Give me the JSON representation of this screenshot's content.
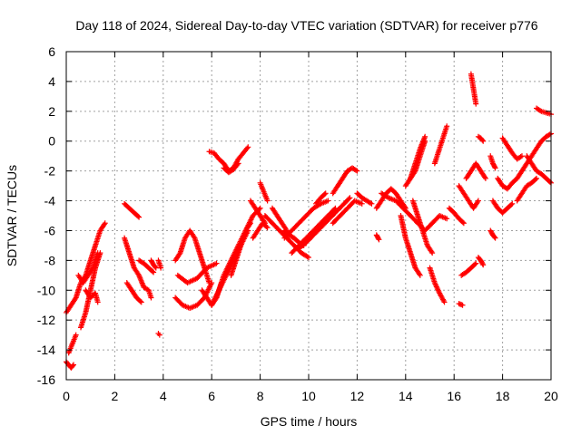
{
  "chart_data": {
    "type": "scatter",
    "title": "Day 118 of 2024, Sidereal Day-to-day VTEC variation (SDTVAR) for receiver p776",
    "xlabel": "GPS time / hours",
    "ylabel": "SDTVAR / TECUs",
    "xlim": [
      0,
      20
    ],
    "ylim": [
      -16,
      6
    ],
    "xticks": [
      "0",
      "2",
      "4",
      "6",
      "8",
      "10",
      "12",
      "14",
      "16",
      "18",
      "20"
    ],
    "yticks": [
      "6",
      "4",
      "2",
      "0",
      "-2",
      "-4",
      "-6",
      "-8",
      "-10",
      "-12",
      "-14",
      "-16"
    ],
    "grid": true,
    "marker": "+",
    "series_color": "#ff0000",
    "series": [
      {
        "name": "seg01",
        "x": [
          0.0,
          0.2,
          0.4,
          0.6,
          0.8,
          1.0,
          1.2,
          1.4,
          1.6
        ],
        "y": [
          -11.5,
          -11.0,
          -10.5,
          -9.5,
          -9.0,
          -8.0,
          -7.0,
          -6.0,
          -5.5
        ]
      },
      {
        "name": "seg02",
        "x": [
          0.0,
          0.1,
          0.2,
          0.3
        ],
        "y": [
          -14.8,
          -15.0,
          -15.2,
          -15.0
        ]
      },
      {
        "name": "seg03",
        "x": [
          0.1,
          0.2,
          0.3,
          0.4
        ],
        "y": [
          -14.2,
          -13.8,
          -13.4,
          -13.0
        ]
      },
      {
        "name": "seg04",
        "x": [
          0.6,
          0.8,
          1.0,
          1.2,
          1.4
        ],
        "y": [
          -12.5,
          -11.5,
          -10.0,
          -8.5,
          -7.5
        ]
      },
      {
        "name": "seg05",
        "x": [
          0.5,
          0.7,
          0.9,
          1.1,
          1.3
        ],
        "y": [
          -9.0,
          -9.5,
          -9.0,
          -8.5,
          -7.5
        ]
      },
      {
        "name": "seg06",
        "x": [
          0.8,
          1.0,
          1.2,
          1.3
        ],
        "y": [
          -10.0,
          -10.5,
          -10.2,
          -10.8
        ]
      },
      {
        "name": "seg07",
        "x": [
          2.4,
          2.6,
          2.8,
          3.0
        ],
        "y": [
          -4.2,
          -4.5,
          -4.8,
          -5.1
        ]
      },
      {
        "name": "seg08",
        "x": [
          2.4,
          2.6,
          2.8,
          3.0,
          3.2,
          3.4,
          3.5
        ],
        "y": [
          -6.5,
          -7.5,
          -8.5,
          -9.0,
          -9.8,
          -10.0,
          -10.5
        ]
      },
      {
        "name": "seg09",
        "x": [
          2.5,
          2.7,
          2.9,
          3.1
        ],
        "y": [
          -9.5,
          -10.0,
          -10.5,
          -10.8
        ]
      },
      {
        "name": "seg10",
        "x": [
          3.0,
          3.2,
          3.4,
          3.6
        ],
        "y": [
          -8.0,
          -8.2,
          -8.5,
          -8.8
        ]
      },
      {
        "name": "seg11",
        "x": [
          3.5,
          3.6,
          3.7
        ],
        "y": [
          -8.0,
          -8.3,
          -8.5
        ]
      },
      {
        "name": "seg12",
        "x": [
          3.8,
          3.9
        ],
        "y": [
          -8.0,
          -8.5
        ]
      },
      {
        "name": "seg13",
        "x": [
          3.8,
          3.85
        ],
        "y": [
          -12.9,
          -13.0
        ]
      },
      {
        "name": "seg14",
        "x": [
          4.5,
          4.7,
          4.9,
          5.1,
          5.3,
          5.5,
          5.7,
          5.9
        ],
        "y": [
          -8.0,
          -7.5,
          -6.5,
          -6.0,
          -6.5,
          -7.5,
          -8.5,
          -9.5
        ]
      },
      {
        "name": "seg15",
        "x": [
          4.5,
          4.8,
          5.1,
          5.4,
          5.7,
          6.0
        ],
        "y": [
          -10.5,
          -11.0,
          -11.2,
          -11.0,
          -10.5,
          -9.5
        ]
      },
      {
        "name": "seg16",
        "x": [
          4.6,
          5.0,
          5.4,
          5.8,
          6.2
        ],
        "y": [
          -9.0,
          -9.5,
          -9.2,
          -8.5,
          -8.2
        ]
      },
      {
        "name": "seg17",
        "x": [
          5.6,
          5.8,
          6.0,
          6.2,
          6.4
        ],
        "y": [
          -10.0,
          -10.5,
          -11.0,
          -10.5,
          -9.5
        ]
      },
      {
        "name": "seg18",
        "x": [
          5.9,
          6.1,
          6.3,
          6.5,
          6.7,
          6.9,
          7.1,
          7.3,
          7.5
        ],
        "y": [
          -0.7,
          -0.8,
          -1.2,
          -1.5,
          -2.0,
          -1.8,
          -1.2,
          -0.8,
          -0.4
        ]
      },
      {
        "name": "seg19",
        "x": [
          6.5,
          6.7,
          6.9,
          7.1
        ],
        "y": [
          -1.8,
          -2.1,
          -1.9,
          -1.5
        ]
      },
      {
        "name": "seg20",
        "x": [
          6.2,
          6.5,
          6.8,
          7.1,
          7.4,
          7.7,
          8.0
        ],
        "y": [
          -10.5,
          -9.0,
          -8.0,
          -7.0,
          -6.0,
          -5.0,
          -4.5
        ]
      },
      {
        "name": "seg21",
        "x": [
          6.0,
          6.3,
          6.6,
          6.9,
          7.2,
          7.5
        ],
        "y": [
          -11.0,
          -10.0,
          -9.0,
          -8.0,
          -7.0,
          -6.0
        ]
      },
      {
        "name": "seg22",
        "x": [
          6.8,
          7.0,
          7.2,
          7.4,
          7.6
        ],
        "y": [
          -9.0,
          -8.0,
          -7.0,
          -6.0,
          -5.5
        ]
      },
      {
        "name": "seg23",
        "x": [
          8.0,
          8.1,
          8.2,
          8.3
        ],
        "y": [
          -2.8,
          -3.2,
          -3.6,
          -4.0
        ]
      },
      {
        "name": "seg24",
        "x": [
          7.6,
          7.8,
          8.0,
          8.2
        ],
        "y": [
          -4.0,
          -4.5,
          -5.0,
          -5.5
        ]
      },
      {
        "name": "seg25",
        "x": [
          7.7,
          7.9,
          8.1,
          8.3
        ],
        "y": [
          -6.5,
          -6.0,
          -5.5,
          -5.8
        ]
      },
      {
        "name": "seg26",
        "x": [
          8.2,
          8.5,
          8.8,
          9.1,
          9.4,
          9.7,
          10.0
        ],
        "y": [
          -5.0,
          -5.5,
          -6.0,
          -6.5,
          -7.0,
          -7.5,
          -7.8
        ]
      },
      {
        "name": "seg27",
        "x": [
          8.5,
          8.7,
          8.9,
          9.1
        ],
        "y": [
          -4.5,
          -5.0,
          -5.5,
          -6.0
        ]
      },
      {
        "name": "seg28",
        "x": [
          9.0,
          9.2,
          9.4,
          9.6,
          9.8
        ],
        "y": [
          -6.0,
          -6.3,
          -6.5,
          -6.8,
          -7.0
        ]
      },
      {
        "name": "seg29",
        "x": [
          9.3,
          9.6,
          9.9,
          10.2,
          10.5,
          10.8,
          11.1
        ],
        "y": [
          -7.5,
          -7.0,
          -6.5,
          -6.0,
          -5.5,
          -5.0,
          -4.5
        ]
      },
      {
        "name": "seg30",
        "x": [
          9.0,
          9.3,
          9.6,
          9.9,
          10.2,
          10.5,
          10.8
        ],
        "y": [
          -6.5,
          -6.0,
          -5.5,
          -5.0,
          -4.5,
          -4.2,
          -4.0
        ]
      },
      {
        "name": "seg31",
        "x": [
          9.6,
          9.9,
          10.2,
          10.5,
          10.8,
          11.1,
          11.4,
          11.7
        ],
        "y": [
          -7.2,
          -6.8,
          -6.3,
          -5.8,
          -5.3,
          -4.8,
          -4.3,
          -3.8
        ]
      },
      {
        "name": "seg32",
        "x": [
          10.3,
          10.5,
          10.7
        ],
        "y": [
          -4.2,
          -3.8,
          -3.5
        ]
      },
      {
        "name": "seg33",
        "x": [
          11.0,
          11.2,
          11.4,
          11.6,
          11.8,
          12.0
        ],
        "y": [
          -3.5,
          -3.0,
          -2.5,
          -2.0,
          -1.8,
          -2.0
        ]
      },
      {
        "name": "seg34",
        "x": [
          11.0,
          11.3,
          11.6,
          11.9,
          12.2
        ],
        "y": [
          -5.5,
          -5.0,
          -4.5,
          -4.0,
          -4.2
        ]
      },
      {
        "name": "seg35",
        "x": [
          12.0,
          12.2,
          12.4,
          12.6
        ],
        "y": [
          -3.5,
          -3.8,
          -4.0,
          -4.2
        ]
      },
      {
        "name": "seg36",
        "x": [
          12.8,
          12.9
        ],
        "y": [
          -6.3,
          -6.6
        ]
      },
      {
        "name": "seg37",
        "x": [
          12.8,
          13.0,
          13.2,
          13.4,
          13.6,
          13.8,
          14.0
        ],
        "y": [
          -4.5,
          -4.0,
          -3.5,
          -3.2,
          -3.5,
          -4.0,
          -4.5
        ]
      },
      {
        "name": "seg38",
        "x": [
          13.0,
          13.3,
          13.6,
          13.9,
          14.2,
          14.5,
          14.8,
          15.1,
          15.4,
          15.7
        ],
        "y": [
          -3.5,
          -3.8,
          -4.0,
          -4.5,
          -5.0,
          -5.5,
          -6.0,
          -5.5,
          -5.0,
          -5.2
        ]
      },
      {
        "name": "seg39",
        "x": [
          14.0,
          14.2,
          14.4,
          14.6,
          14.8
        ],
        "y": [
          -3.0,
          -2.5,
          -2.0,
          -1.0,
          0.0
        ]
      },
      {
        "name": "seg40",
        "x": [
          14.2,
          14.4,
          14.6,
          14.8
        ],
        "y": [
          -2.5,
          -1.5,
          -0.5,
          0.3
        ]
      },
      {
        "name": "seg41",
        "x": [
          13.8,
          14.0,
          14.2,
          14.4,
          14.6
        ],
        "y": [
          -5.0,
          -6.5,
          -7.5,
          -8.5,
          -9.0
        ]
      },
      {
        "name": "seg42",
        "x": [
          14.3,
          14.5,
          14.7,
          14.9,
          15.1
        ],
        "y": [
          -4.0,
          -5.0,
          -6.0,
          -7.0,
          -7.5
        ]
      },
      {
        "name": "seg43",
        "x": [
          15.0,
          15.2,
          15.4,
          15.6
        ],
        "y": [
          -8.5,
          -9.5,
          -10.2,
          -10.8
        ]
      },
      {
        "name": "seg44",
        "x": [
          15.2,
          15.3,
          15.4,
          15.5,
          15.6,
          15.7
        ],
        "y": [
          -1.5,
          -1.0,
          -0.5,
          0.0,
          0.5,
          1.0
        ]
      },
      {
        "name": "seg45",
        "x": [
          15.8,
          16.0,
          16.2,
          16.4
        ],
        "y": [
          -4.5,
          -4.8,
          -5.2,
          -5.5
        ]
      },
      {
        "name": "seg46",
        "x": [
          16.2,
          16.35
        ],
        "y": [
          -10.9,
          -11.0
        ]
      },
      {
        "name": "seg47",
        "x": [
          16.3,
          16.5,
          16.7,
          16.9
        ],
        "y": [
          -9.0,
          -8.8,
          -8.5,
          -8.2
        ]
      },
      {
        "name": "seg48",
        "x": [
          16.7,
          16.75,
          16.8,
          16.85,
          16.9
        ],
        "y": [
          4.5,
          4.0,
          3.5,
          3.0,
          2.5
        ]
      },
      {
        "name": "seg49",
        "x": [
          16.2,
          16.4,
          16.6,
          16.8,
          17.0
        ],
        "y": [
          -3.0,
          -3.5,
          -4.0,
          -4.5,
          -4.0
        ]
      },
      {
        "name": "seg50",
        "x": [
          16.5,
          16.7,
          16.9,
          17.1,
          17.3
        ],
        "y": [
          -2.5,
          -2.0,
          -1.5,
          -2.0,
          -2.5
        ]
      },
      {
        "name": "seg51",
        "x": [
          17.0,
          17.1,
          17.2
        ],
        "y": [
          0.3,
          0.2,
          0.0
        ]
      },
      {
        "name": "seg52",
        "x": [
          17.0,
          17.1,
          17.2
        ],
        "y": [
          -7.8,
          -8.0,
          -8.3
        ]
      },
      {
        "name": "seg53",
        "x": [
          17.5,
          17.6,
          17.7
        ],
        "y": [
          -6.0,
          -6.3,
          -6.5
        ]
      },
      {
        "name": "seg54",
        "x": [
          17.5,
          17.6,
          17.7
        ],
        "y": [
          -1.0,
          -1.5,
          -1.8
        ]
      },
      {
        "name": "seg55",
        "x": [
          17.6,
          17.8,
          18.0,
          18.2,
          18.4
        ],
        "y": [
          -4.0,
          -4.5,
          -4.8,
          -4.5,
          -4.2
        ]
      },
      {
        "name": "seg56",
        "x": [
          17.8,
          18.0,
          18.2,
          18.4,
          18.6
        ],
        "y": [
          -2.5,
          -3.0,
          -3.2,
          -2.8,
          -2.5
        ]
      },
      {
        "name": "seg57",
        "x": [
          18.0,
          18.2,
          18.4,
          18.6,
          18.8
        ],
        "y": [
          0.2,
          -0.3,
          -0.8,
          -1.2,
          -1.0
        ]
      },
      {
        "name": "seg58",
        "x": [
          18.6,
          18.8,
          19.0,
          19.2,
          19.4,
          19.6,
          19.8,
          20.0
        ],
        "y": [
          -2.5,
          -2.0,
          -1.5,
          -1.0,
          -0.5,
          0.0,
          0.3,
          0.5
        ]
      },
      {
        "name": "seg59",
        "x": [
          19.0,
          19.2,
          19.4,
          19.6,
          19.8,
          20.0
        ],
        "y": [
          -1.0,
          -1.5,
          -2.0,
          -2.2,
          -2.5,
          -2.8
        ]
      },
      {
        "name": "seg60",
        "x": [
          19.4,
          19.6,
          19.8,
          20.0
        ],
        "y": [
          2.2,
          2.0,
          1.9,
          1.8
        ]
      },
      {
        "name": "seg61",
        "x": [
          18.6,
          18.8,
          19.0,
          19.2,
          19.4
        ],
        "y": [
          -4.0,
          -3.5,
          -3.0,
          -2.8,
          -2.5
        ]
      }
    ]
  }
}
